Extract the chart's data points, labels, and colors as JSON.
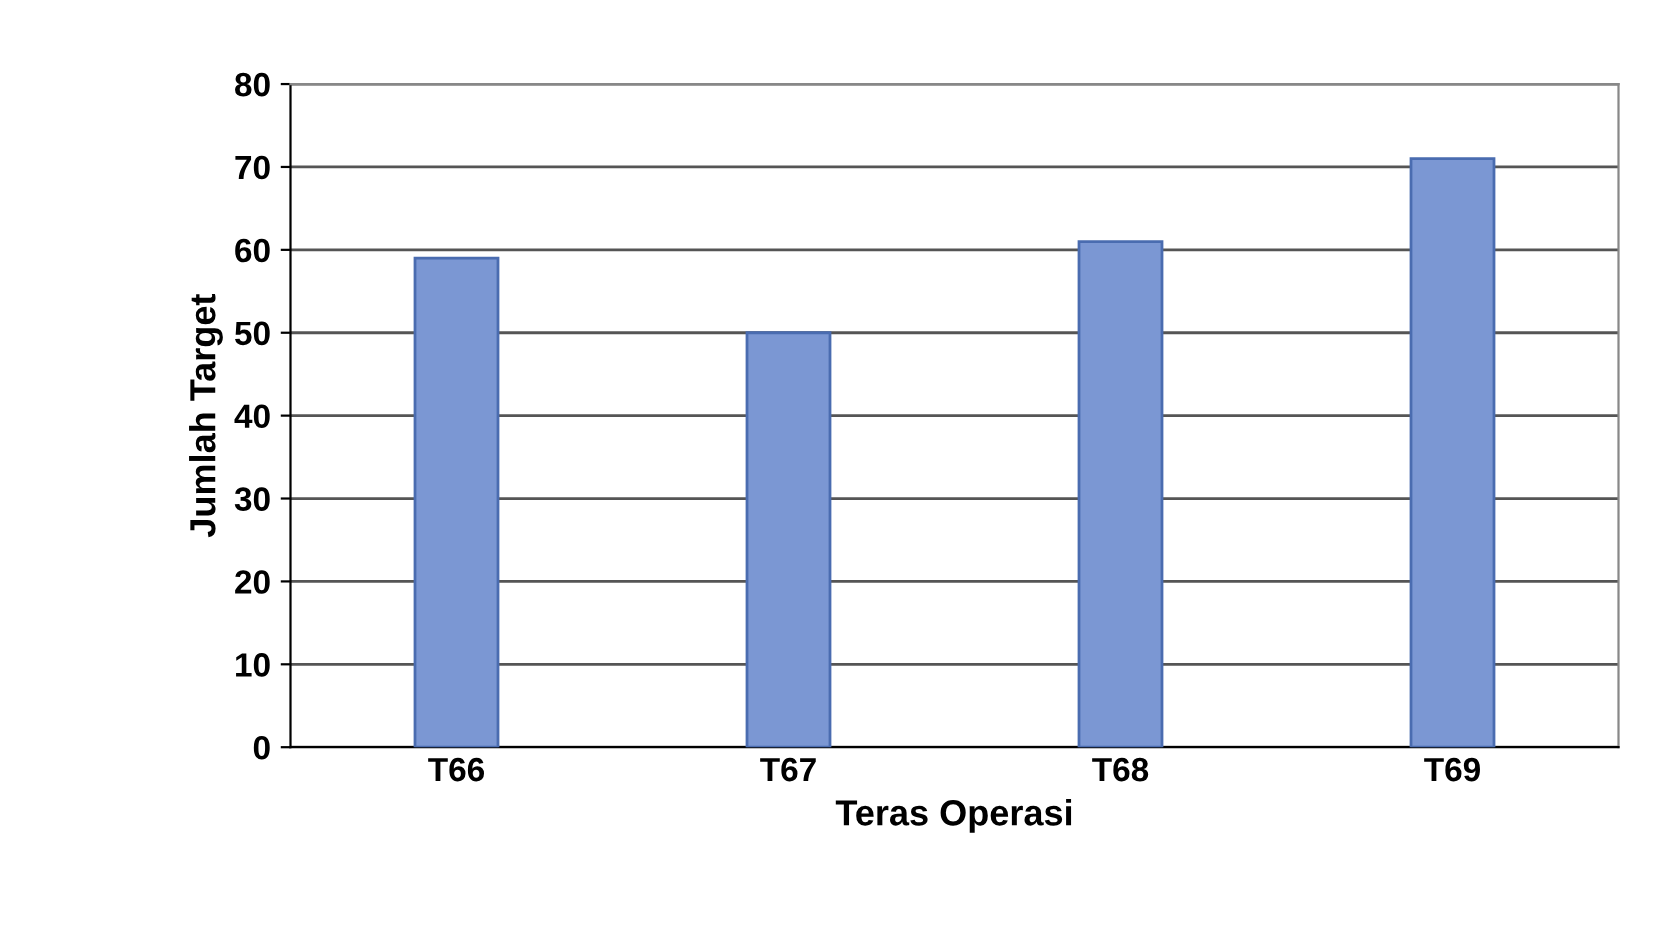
{
  "chart_data": {
    "type": "bar",
    "xlabel": "Teras Operasi",
    "ylabel": "Jumlah Target",
    "categories": [
      "T66",
      "T67",
      "T68",
      "T69"
    ],
    "values": [
      59,
      50,
      61,
      71
    ],
    "color": "#7b97d3",
    "ylim": [
      0,
      80
    ],
    "yticks": [
      0,
      10,
      20,
      30,
      40,
      50,
      60,
      70,
      80
    ],
    "grid": "y"
  }
}
